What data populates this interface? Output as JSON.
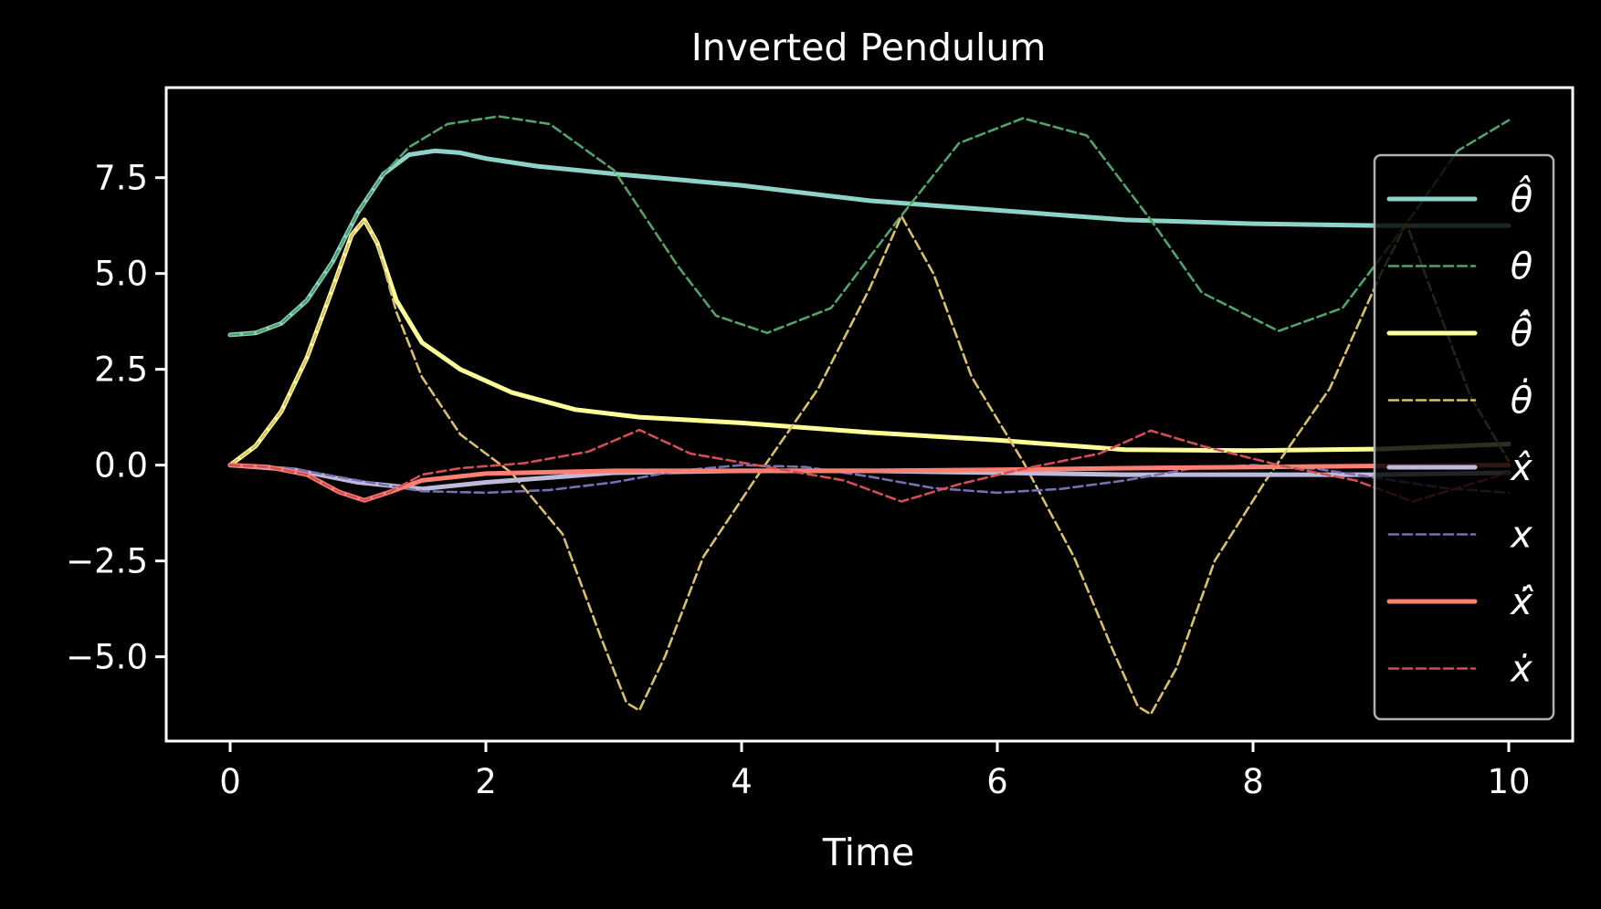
{
  "chart_data": {
    "type": "line",
    "title": "Inverted Pendulum",
    "xlabel": "Time",
    "ylabel": "",
    "xlim": [
      -0.5,
      10.5
    ],
    "ylim": [
      -7.2,
      9.85
    ],
    "xticks": [
      0,
      2,
      4,
      6,
      8,
      10
    ],
    "xtick_labels": [
      "0",
      "2",
      "4",
      "6",
      "8",
      "10"
    ],
    "yticks": [
      -5.0,
      -2.5,
      0.0,
      2.5,
      5.0,
      7.5
    ],
    "ytick_labels": [
      "−5.0",
      "−2.5",
      "0.0",
      "2.5",
      "5.0",
      "7.5"
    ],
    "grid": false,
    "legend_position": "right",
    "background": "#000000",
    "series": [
      {
        "name": "θ̂",
        "color": "#8dd3c7",
        "style": "solid",
        "x": [
          0,
          0.2,
          0.4,
          0.6,
          0.8,
          1.0,
          1.2,
          1.4,
          1.6,
          1.8,
          2.0,
          2.4,
          3.0,
          3.5,
          4.0,
          5.0,
          6.0,
          7.0,
          8.0,
          9.0,
          10.0
        ],
        "y": [
          3.4,
          3.45,
          3.7,
          4.3,
          5.3,
          6.6,
          7.6,
          8.1,
          8.2,
          8.15,
          8.0,
          7.8,
          7.6,
          7.45,
          7.3,
          6.9,
          6.65,
          6.4,
          6.3,
          6.25,
          6.25
        ]
      },
      {
        "name": "θ",
        "color": "#52a36b",
        "style": "dashed",
        "x": [
          0,
          0.2,
          0.4,
          0.6,
          0.8,
          1.0,
          1.2,
          1.4,
          1.7,
          2.1,
          2.5,
          3.0,
          3.5,
          3.8,
          4.2,
          4.7,
          5.2,
          5.7,
          6.2,
          6.7,
          7.2,
          7.6,
          8.2,
          8.7,
          9.2,
          9.6,
          10.0
        ],
        "y": [
          3.4,
          3.45,
          3.7,
          4.3,
          5.3,
          6.6,
          7.6,
          8.3,
          8.9,
          9.1,
          8.9,
          7.7,
          5.2,
          3.9,
          3.45,
          4.1,
          6.3,
          8.4,
          9.05,
          8.6,
          6.4,
          4.5,
          3.5,
          4.1,
          6.3,
          8.2,
          9.0
        ]
      },
      {
        "name": "θ̇̂",
        "color": "#ffff99",
        "style": "solid",
        "x": [
          0,
          0.2,
          0.4,
          0.6,
          0.8,
          0.95,
          1.05,
          1.15,
          1.3,
          1.5,
          1.8,
          2.2,
          2.7,
          3.2,
          4.0,
          5.0,
          6.0,
          7.0,
          8.0,
          9.0,
          10.0
        ],
        "y": [
          0.0,
          0.5,
          1.4,
          2.8,
          4.6,
          6.0,
          6.4,
          5.8,
          4.3,
          3.2,
          2.5,
          1.9,
          1.45,
          1.25,
          1.1,
          0.85,
          0.65,
          0.4,
          0.38,
          0.42,
          0.55
        ]
      },
      {
        "name": "θ̇",
        "color": "#d9c06a",
        "style": "dashed",
        "x": [
          0,
          0.2,
          0.4,
          0.6,
          0.8,
          0.95,
          1.05,
          1.15,
          1.3,
          1.5,
          1.8,
          2.2,
          2.6,
          2.9,
          3.1,
          3.2,
          3.4,
          3.7,
          4.1,
          4.6,
          5.0,
          5.25,
          5.5,
          5.8,
          6.2,
          6.6,
          6.9,
          7.1,
          7.2,
          7.4,
          7.7,
          8.1,
          8.6,
          9.0,
          9.2,
          9.4,
          9.7,
          10.0
        ],
        "y": [
          0.0,
          0.5,
          1.4,
          2.8,
          4.6,
          6.0,
          6.4,
          5.8,
          4.0,
          2.3,
          0.8,
          -0.2,
          -1.8,
          -4.5,
          -6.2,
          -6.4,
          -5.0,
          -2.4,
          -0.4,
          2.0,
          4.6,
          6.5,
          5.0,
          2.3,
          0.1,
          -2.4,
          -4.8,
          -6.3,
          -6.5,
          -5.3,
          -2.5,
          -0.4,
          2.0,
          5.0,
          6.3,
          4.5,
          1.8,
          0.1
        ]
      },
      {
        "name": "x̂",
        "color": "#bebada",
        "style": "solid",
        "x": [
          0,
          0.5,
          1.0,
          1.5,
          2.0,
          3.0,
          4.0,
          5.0,
          6.0,
          7.0,
          8.0,
          9.0,
          10.0
        ],
        "y": [
          0.0,
          -0.12,
          -0.45,
          -0.62,
          -0.45,
          -0.2,
          -0.15,
          -0.15,
          -0.2,
          -0.25,
          -0.25,
          -0.25,
          -0.2
        ]
      },
      {
        "name": "x",
        "color": "#7b6eb0",
        "style": "dashed",
        "x": [
          0,
          0.5,
          1.0,
          1.5,
          2.0,
          2.5,
          3.0,
          3.5,
          4.0,
          4.5,
          5.0,
          5.5,
          6.0,
          6.5,
          7.0,
          7.5,
          8.0,
          8.5,
          9.0,
          9.5,
          10.0
        ],
        "y": [
          0.0,
          -0.1,
          -0.4,
          -0.68,
          -0.72,
          -0.65,
          -0.45,
          -0.15,
          0.0,
          -0.05,
          -0.3,
          -0.6,
          -0.72,
          -0.62,
          -0.4,
          -0.1,
          0.0,
          -0.1,
          -0.35,
          -0.6,
          -0.72
        ]
      },
      {
        "name": "ẋ̂",
        "color": "#fb8072",
        "style": "solid",
        "x": [
          0,
          0.3,
          0.6,
          0.85,
          1.05,
          1.25,
          1.5,
          2.0,
          3.0,
          4.0,
          5.0,
          6.0,
          7.0,
          8.0,
          9.0,
          10.0
        ],
        "y": [
          0.0,
          -0.05,
          -0.25,
          -0.7,
          -0.92,
          -0.7,
          -0.4,
          -0.22,
          -0.15,
          -0.15,
          -0.15,
          -0.12,
          -0.08,
          -0.05,
          -0.02,
          0.0
        ]
      },
      {
        "name": "ẋ",
        "color": "#d14f55",
        "style": "dashed",
        "x": [
          0,
          0.3,
          0.6,
          0.85,
          1.05,
          1.25,
          1.5,
          1.8,
          2.3,
          2.8,
          3.2,
          3.6,
          4.2,
          4.8,
          5.25,
          5.7,
          6.2,
          6.8,
          7.2,
          7.6,
          8.2,
          8.8,
          9.25,
          9.7,
          10.0
        ],
        "y": [
          0.0,
          -0.05,
          -0.25,
          -0.7,
          -0.92,
          -0.7,
          -0.25,
          -0.08,
          0.05,
          0.35,
          0.92,
          0.3,
          -0.05,
          -0.4,
          -0.95,
          -0.5,
          -0.1,
          0.3,
          0.9,
          0.5,
          0.0,
          -0.4,
          -0.95,
          -0.5,
          -0.2
        ]
      }
    ]
  }
}
